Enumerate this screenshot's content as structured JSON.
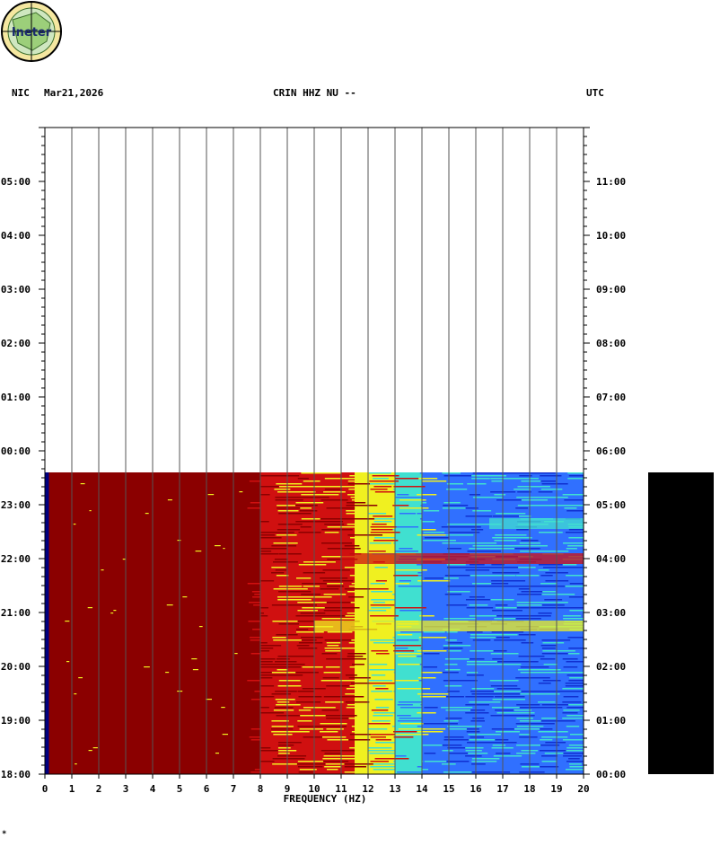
{
  "logo": {
    "text": "Ineter"
  },
  "header": {
    "left_network": "NIC",
    "left_date": "Mar21,2026",
    "center_title": "CRIN HHZ NU --",
    "right_tz": "UTC"
  },
  "footer": {
    "mark": "*"
  },
  "colors": {
    "background": "#ffffff",
    "grid": "#000000",
    "dark_red": "#8b0000",
    "red": "#d01010",
    "yellow": "#f0f020",
    "cyan": "#40e0d0",
    "light_blue": "#3070ff",
    "blue": "#1030d0",
    "navy": "#000080"
  },
  "chart_data": {
    "type": "heatmap",
    "title": "CRIN HHZ NU --",
    "xlabel": "FREQUENCY (HZ)",
    "ylabel": "",
    "xlim": [
      0,
      20
    ],
    "x_ticks": [
      "0",
      "1",
      "2",
      "3",
      "4",
      "5",
      "6",
      "7",
      "8",
      "9",
      "10",
      "11",
      "12",
      "13",
      "14",
      "15",
      "16",
      "17",
      "18",
      "19",
      "20"
    ],
    "left_time_ticks": [
      "18:00",
      "19:00",
      "20:00",
      "21:00",
      "22:00",
      "23:00",
      "00:00",
      "01:00",
      "02:00",
      "03:00",
      "04:00",
      "05:00"
    ],
    "right_time_ticks": [
      "00:00",
      "01:00",
      "02:00",
      "03:00",
      "04:00",
      "05:00",
      "06:00",
      "07:00",
      "08:00",
      "09:00",
      "10:00",
      "11:00"
    ],
    "left_time_zone": "NIC",
    "right_time_zone": "UTC",
    "y_range_hours": [
      0,
      12
    ],
    "data_end_hours": 5.6,
    "spectral_bands": [
      {
        "from_hz": 0.0,
        "to_hz": 0.15,
        "level": "navy"
      },
      {
        "from_hz": 0.15,
        "to_hz": 8.0,
        "level": "dark_red"
      },
      {
        "from_hz": 8.0,
        "to_hz": 10.0,
        "level": "red"
      },
      {
        "from_hz": 10.0,
        "to_hz": 11.5,
        "level": "red"
      },
      {
        "from_hz": 11.5,
        "to_hz": 13.0,
        "level": "yellow"
      },
      {
        "from_hz": 13.0,
        "to_hz": 14.0,
        "level": "cyan"
      },
      {
        "from_hz": 14.0,
        "to_hz": 20.0,
        "level": "light_blue"
      }
    ],
    "events": [
      {
        "hours_from_start": 2.75,
        "from_hz": 10.0,
        "to_hz": 20.0,
        "level": "yellow"
      },
      {
        "hours_from_start": 4.65,
        "from_hz": 16.5,
        "to_hz": 20.0,
        "level": "cyan"
      },
      {
        "hours_from_start": 4.0,
        "from_hz": 11.0,
        "to_hz": 20.0,
        "level": "red"
      }
    ]
  }
}
